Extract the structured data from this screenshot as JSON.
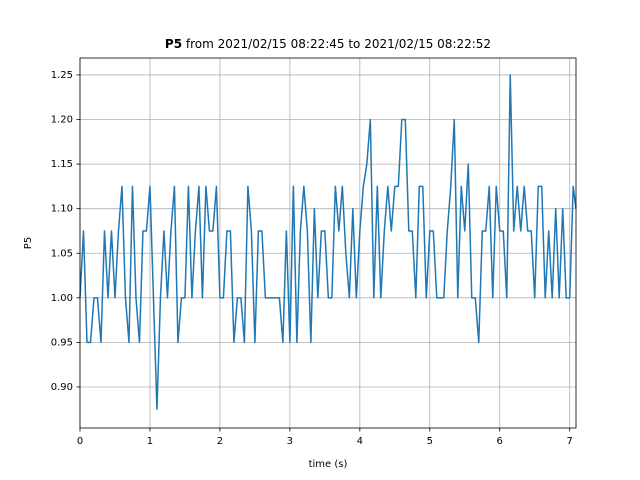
{
  "chart_data": {
    "type": "line",
    "title_bold": "P5",
    "title": "from 2021/02/15 08:22:45 to 2021/02/15 08:22:52",
    "xlabel": "time (s)",
    "ylabel": "P5",
    "x": [
      0,
      0.05,
      0.1,
      0.15,
      0.2,
      0.25,
      0.3,
      0.35,
      0.4,
      0.45,
      0.5,
      0.55,
      0.6,
      0.65,
      0.7,
      0.75,
      0.8,
      0.85,
      0.9,
      0.95,
      1,
      1.05,
      1.1,
      1.15,
      1.2,
      1.25,
      1.3,
      1.35,
      1.4,
      1.45,
      1.5,
      1.55,
      1.6,
      1.65,
      1.7,
      1.75,
      1.8,
      1.85,
      1.9,
      1.95,
      2,
      2.05,
      2.1,
      2.15,
      2.2,
      2.25,
      2.3,
      2.35,
      2.4,
      2.45,
      2.5,
      2.55,
      2.6,
      2.65,
      2.7,
      2.75,
      2.8,
      2.85,
      2.9,
      2.95,
      3,
      3.05,
      3.1,
      3.15,
      3.2,
      3.25,
      3.3,
      3.35,
      3.4,
      3.45,
      3.5,
      3.55,
      3.6,
      3.65,
      3.7,
      3.75,
      3.8,
      3.85,
      3.9,
      3.95,
      4,
      4.05,
      4.1,
      4.15,
      4.2,
      4.25,
      4.3,
      4.35,
      4.4,
      4.45,
      4.5,
      4.55,
      4.6,
      4.65,
      4.7,
      4.75,
      4.8,
      4.85,
      4.9,
      4.95,
      5,
      5.05,
      5.1,
      5.15,
      5.2,
      5.25,
      5.3,
      5.35,
      5.4,
      5.45,
      5.5,
      5.55,
      5.6,
      5.65,
      5.7,
      5.75,
      5.8,
      5.85,
      5.9,
      5.95,
      6,
      6.05,
      6.1,
      6.15,
      6.2,
      6.25,
      6.3,
      6.35,
      6.4,
      6.45,
      6.5,
      6.55,
      6.6,
      6.65,
      6.7,
      6.75,
      6.8,
      6.85,
      6.9,
      6.95,
      7,
      7.05,
      7.09
    ],
    "series": [
      {
        "color": "#1f77b4",
        "values": [
          1.0,
          1.075,
          0.95,
          0.95,
          1.0,
          1.0,
          0.95,
          1.075,
          1.0,
          1.075,
          1.0,
          1.075,
          1.125,
          1.0,
          0.95,
          1.125,
          1.0,
          0.95,
          1.075,
          1.075,
          1.125,
          1.0,
          0.875,
          1.0,
          1.075,
          1.0,
          1.075,
          1.125,
          0.95,
          1.0,
          1.0,
          1.125,
          1.0,
          1.075,
          1.125,
          1.0,
          1.125,
          1.075,
          1.075,
          1.125,
          1.0,
          1.0,
          1.075,
          1.075,
          0.95,
          1.0,
          1.0,
          0.95,
          1.125,
          1.075,
          0.95,
          1.075,
          1.075,
          1.0,
          1.0,
          1.0,
          1.0,
          1.0,
          0.95,
          1.075,
          0.95,
          1.125,
          0.95,
          1.075,
          1.125,
          1.075,
          0.95,
          1.1,
          1.0,
          1.075,
          1.075,
          1.0,
          1.0,
          1.125,
          1.075,
          1.125,
          1.05,
          1.0,
          1.1,
          1.0,
          1.075,
          1.125,
          1.15,
          1.2,
          1.0,
          1.125,
          1.0,
          1.075,
          1.125,
          1.075,
          1.125,
          1.125,
          1.2,
          1.2,
          1.075,
          1.075,
          1.0,
          1.125,
          1.125,
          1.0,
          1.075,
          1.075,
          1.0,
          1.0,
          1.0,
          1.075,
          1.125,
          1.2,
          1.0,
          1.125,
          1.075,
          1.15,
          1.0,
          1.0,
          0.95,
          1.075,
          1.075,
          1.125,
          1.0,
          1.125,
          1.075,
          1.075,
          1.0,
          1.25,
          1.075,
          1.125,
          1.075,
          1.125,
          1.075,
          1.075,
          1.0,
          1.125,
          1.125,
          1.0,
          1.075,
          1.0,
          1.1,
          1.0,
          1.1,
          1.0,
          1.0,
          1.125,
          1.1
        ]
      }
    ],
    "xlim": [
      0,
      7.09
    ],
    "ylim": [
      0.854,
      1.269
    ],
    "xticks": [
      0,
      1,
      2,
      3,
      4,
      5,
      6,
      7
    ],
    "yticks": [
      {
        "value": 0.9,
        "label": "0.90"
      },
      {
        "value": 0.95,
        "label": "0.95"
      },
      {
        "value": 1.0,
        "label": "1.00"
      },
      {
        "value": 1.05,
        "label": "1.05"
      },
      {
        "value": 1.1,
        "label": "1.10"
      },
      {
        "value": 1.15,
        "label": "1.15"
      },
      {
        "value": 1.2,
        "label": "1.20"
      },
      {
        "value": 1.25,
        "label": "1.25"
      }
    ],
    "grid": true
  }
}
